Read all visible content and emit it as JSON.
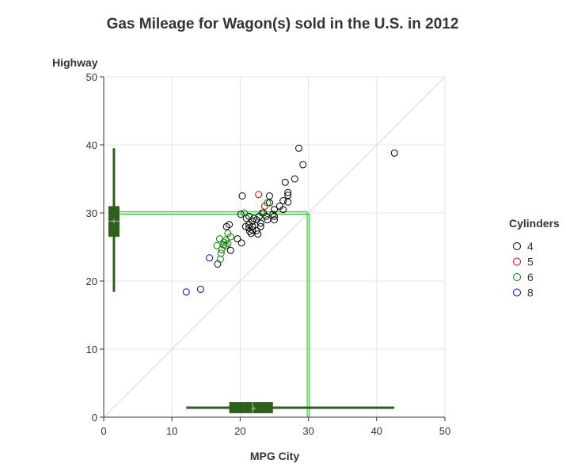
{
  "chart_data": {
    "type": "scatter",
    "title": "Gas Mileage for Wagon(s) sold in the U.S. in 2012",
    "xlabel": "MPG City",
    "ylabel": "Highway",
    "xlim": [
      0,
      50
    ],
    "ylim": [
      0,
      50
    ],
    "xticks": [
      "0",
      "10",
      "20",
      "30",
      "40",
      "50"
    ],
    "yticks": [
      "0",
      "10",
      "20",
      "30",
      "40",
      "50"
    ],
    "grid": true,
    "diagonal_reference_line": true,
    "legend": {
      "title": "Cylinders",
      "placement": "right"
    },
    "series": [
      {
        "name": "4",
        "color": "#000000",
        "points": [
          [
            42.6,
            38.8
          ],
          [
            28.6,
            39.5
          ],
          [
            29.2,
            37.1
          ],
          [
            28.0,
            35.0
          ],
          [
            26.6,
            34.5
          ],
          [
            27.0,
            33.0
          ],
          [
            27.0,
            32.6
          ],
          [
            24.3,
            32.5
          ],
          [
            20.3,
            32.5
          ],
          [
            27.0,
            31.6
          ],
          [
            26.3,
            31.8
          ],
          [
            24.3,
            31.5
          ],
          [
            25.8,
            31.0
          ],
          [
            25.0,
            30.5
          ],
          [
            26.3,
            30.5
          ],
          [
            23.4,
            30.0
          ],
          [
            24.8,
            29.8
          ],
          [
            20.1,
            29.8
          ],
          [
            21.3,
            29.5
          ],
          [
            22.8,
            29.5
          ],
          [
            23.8,
            29.5
          ],
          [
            25.0,
            29.5
          ],
          [
            20.9,
            29.2
          ],
          [
            22.0,
            29.2
          ],
          [
            22.4,
            29.0
          ],
          [
            24.0,
            29.0
          ],
          [
            25.0,
            29.0
          ],
          [
            21.8,
            28.8
          ],
          [
            23.0,
            28.5
          ],
          [
            21.3,
            28.3
          ],
          [
            21.8,
            28.0
          ],
          [
            23.0,
            28.0
          ],
          [
            20.8,
            28.0
          ],
          [
            21.3,
            27.8
          ],
          [
            21.8,
            27.5
          ],
          [
            21.4,
            27.3
          ],
          [
            22.4,
            27.4
          ],
          [
            21.6,
            27.0
          ],
          [
            22.6,
            26.9
          ],
          [
            18.4,
            28.3
          ],
          [
            18.0,
            28.0
          ],
          [
            19.6,
            26.2
          ],
          [
            20.2,
            25.6
          ],
          [
            18.6,
            24.5
          ],
          [
            16.7,
            22.5
          ]
        ]
      },
      {
        "name": "5",
        "color": "#e00000",
        "points": [
          [
            22.7,
            32.7
          ],
          [
            23.6,
            31.0
          ]
        ]
      },
      {
        "name": "6",
        "color": "#008000",
        "points": [
          [
            20.6,
            30.0
          ],
          [
            23.2,
            30.0
          ],
          [
            24.0,
            31.5
          ],
          [
            18.2,
            27.0
          ],
          [
            18.6,
            26.5
          ],
          [
            17.9,
            26.0
          ],
          [
            17.0,
            26.2
          ],
          [
            17.6,
            25.7
          ],
          [
            18.2,
            25.5
          ],
          [
            17.6,
            25.3
          ],
          [
            17.9,
            25.2
          ],
          [
            16.6,
            25.2
          ],
          [
            17.3,
            24.6
          ],
          [
            17.2,
            24.1
          ],
          [
            17.1,
            23.2
          ]
        ]
      },
      {
        "name": "8",
        "color": "#0000d0",
        "points": [
          [
            15.5,
            23.4
          ],
          [
            14.2,
            18.8
          ],
          [
            12.1,
            18.4
          ]
        ]
      }
    ],
    "reference_lines": {
      "x": 30,
      "y": 30,
      "color": "#33cc33"
    },
    "boxplot_x": {
      "min": 12.1,
      "q1": 18.4,
      "median": 21.8,
      "mean": 22.0,
      "q3": 24.8,
      "max": 42.6,
      "color": "#2f5f1f"
    },
    "boxplot_y": {
      "min": 18.4,
      "q1": 26.5,
      "median": 28.8,
      "mean": 28.9,
      "q3": 31.0,
      "max": 39.5,
      "color": "#2f5f1f"
    }
  }
}
